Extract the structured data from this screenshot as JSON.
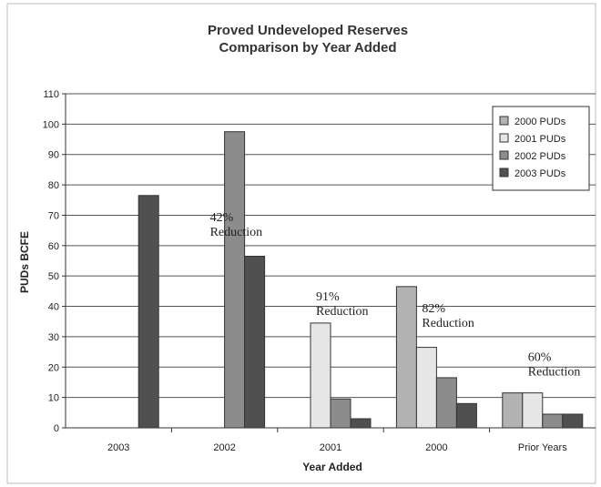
{
  "chart_data": {
    "type": "bar",
    "title": [
      "Proved Undeveloped Reserves",
      "Comparison by Year Added"
    ],
    "xlabel": "Year Added",
    "ylabel": "PUDs BCFE",
    "ylim": [
      0,
      110
    ],
    "yticks": [
      0,
      10,
      20,
      30,
      40,
      50,
      60,
      70,
      80,
      90,
      100,
      110
    ],
    "grid": true,
    "legend_position": "top-right",
    "categories": [
      "2003",
      "2002",
      "2001",
      "2000",
      "Prior Years"
    ],
    "series": [
      {
        "name": "2000 PUDs",
        "color": "#b3b3b3",
        "values": [
          null,
          null,
          null,
          46.5,
          11.5
        ]
      },
      {
        "name": "2001 PUDs",
        "color": "#e6e6e6",
        "values": [
          null,
          null,
          34.5,
          26.5,
          11.5
        ]
      },
      {
        "name": "2002 PUDs",
        "color": "#8c8c8c",
        "values": [
          null,
          97.5,
          9.5,
          16.5,
          4.5
        ]
      },
      {
        "name": "2003 PUDs",
        "color": "#505050",
        "values": [
          76.5,
          56.5,
          3.0,
          8.0,
          4.5
        ]
      }
    ],
    "annotations": [
      {
        "category": "2002",
        "lines": [
          "42%",
          "Reduction"
        ],
        "y": 68
      },
      {
        "category": "2001",
        "lines": [
          "91%",
          "Reduction"
        ],
        "y": 42
      },
      {
        "category": "2000",
        "lines": [
          "82%",
          "Reduction"
        ],
        "y": 38
      },
      {
        "category": "Prior Years",
        "lines": [
          "60%",
          "Reduction"
        ],
        "y": 22
      }
    ]
  }
}
